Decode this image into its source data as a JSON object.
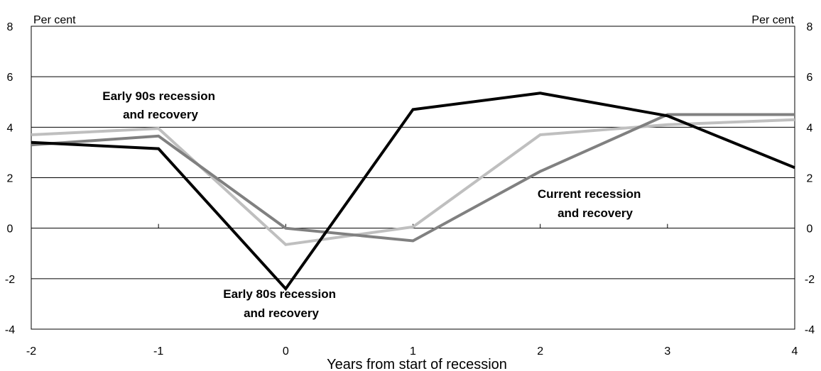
{
  "chart_data": {
    "type": "line",
    "xlabel": "Years from start of recession",
    "ylabel_left": "Per cent",
    "ylabel_right": "Per cent",
    "xlim": [
      -2,
      4
    ],
    "ylim": [
      -4,
      8
    ],
    "x_ticks": [
      "-2",
      "-1",
      "0",
      "1",
      "2",
      "3",
      "4"
    ],
    "y_ticks": [
      "-4",
      "-2",
      "0",
      "2",
      "4",
      "6",
      "8"
    ],
    "grid": "horizontal",
    "series": [
      {
        "name": "Early 80s recession and recovery",
        "color": "#000000",
        "x": [
          -2,
          -1,
          0,
          1,
          2,
          3,
          4
        ],
        "y": [
          3.4,
          3.15,
          -2.4,
          4.7,
          5.35,
          4.45,
          2.4
        ]
      },
      {
        "name": "Current recession and recovery",
        "color": "#808080",
        "x": [
          -2,
          -1,
          0,
          1,
          2,
          3,
          4
        ],
        "y": [
          3.3,
          3.65,
          0.0,
          -0.5,
          2.25,
          4.5,
          4.5
        ]
      },
      {
        "name": "Early 90s recession and recovery",
        "color": "#bfbfbf",
        "x": [
          -2,
          -1,
          0,
          1,
          2,
          3,
          4
        ],
        "y": [
          3.7,
          3.95,
          -0.65,
          0.05,
          3.7,
          4.1,
          4.3
        ]
      }
    ],
    "annotations": [
      {
        "lines": [
          "Early 90s recession",
          "and recovery"
        ]
      },
      {
        "lines": [
          "Current recession",
          "and recovery"
        ]
      },
      {
        "lines": [
          "Early 80s recession",
          "and recovery"
        ]
      }
    ]
  }
}
